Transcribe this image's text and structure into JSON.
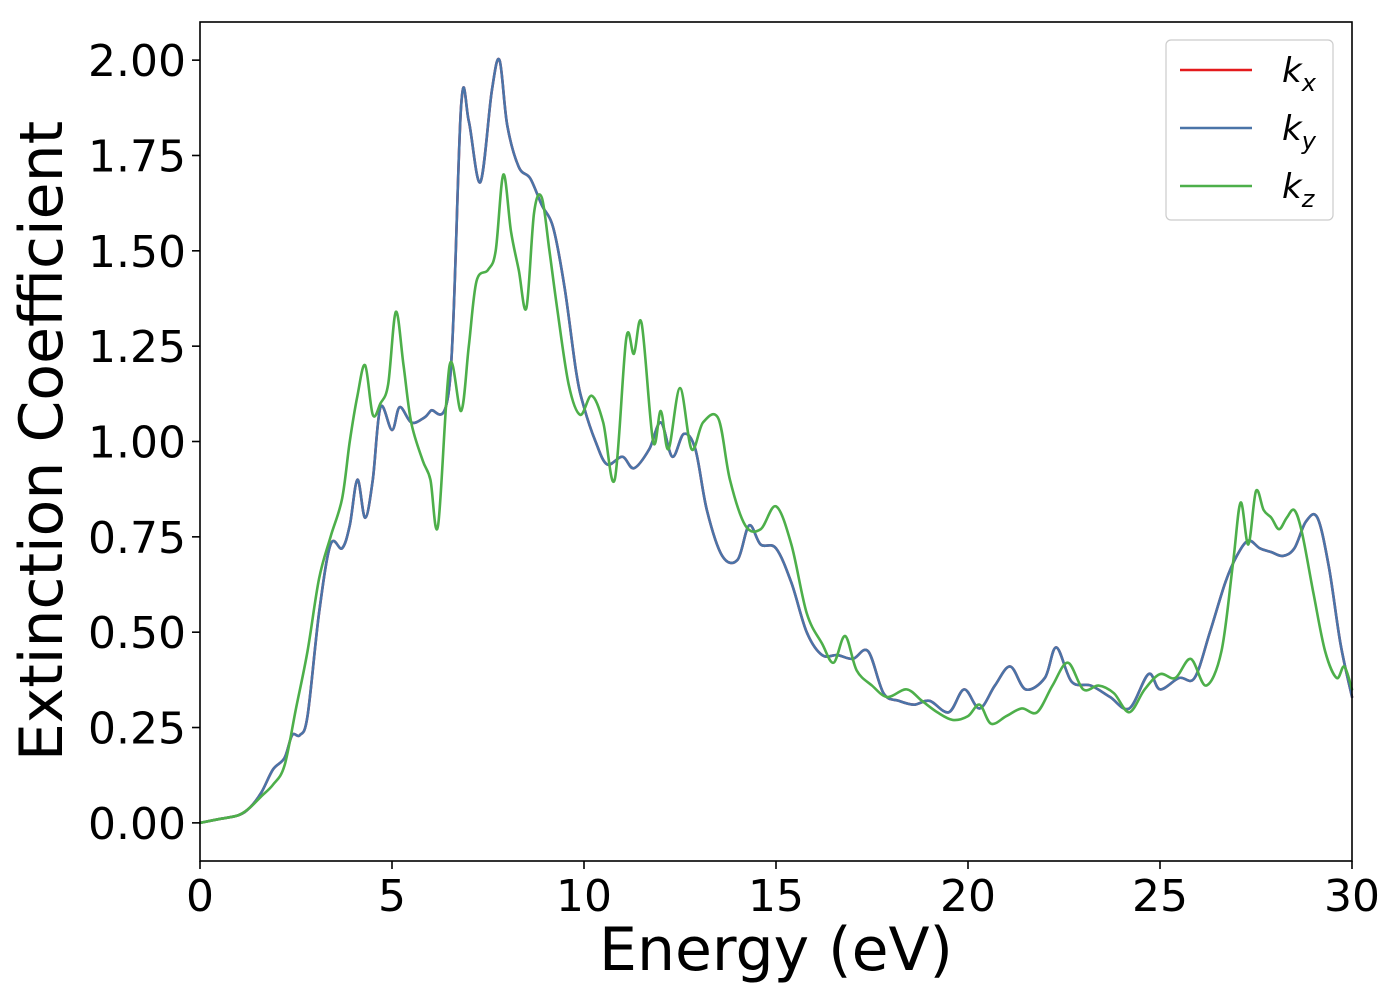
{
  "chart_data": {
    "type": "line",
    "title": "",
    "xlabel": "Energy (eV)",
    "ylabel": "Extinction Coefficient",
    "xlim": [
      0,
      30
    ],
    "ylim": [
      -0.1,
      2.1
    ],
    "xticks": [
      0,
      5,
      10,
      15,
      20,
      25,
      30
    ],
    "xtick_labels": [
      "0",
      "5",
      "10",
      "15",
      "20",
      "25",
      "30"
    ],
    "yticks": [
      0.0,
      0.25,
      0.5,
      0.75,
      1.0,
      1.25,
      1.5,
      1.75,
      2.0
    ],
    "ytick_labels": [
      "0.00",
      "0.25",
      "0.50",
      "0.75",
      "1.00",
      "1.25",
      "1.50",
      "1.75",
      "2.00"
    ],
    "grid": false,
    "legend_position": "top-right",
    "series": [
      {
        "name": "k",
        "subscript": "x",
        "color": "#e41a1c",
        "x": [
          0,
          0.5,
          1.0,
          1.3,
          1.6,
          1.9,
          2.2,
          2.4,
          2.6,
          2.8,
          3.1,
          3.4,
          3.7,
          3.9,
          4.1,
          4.3,
          4.5,
          4.7,
          5.0,
          5.2,
          5.5,
          5.8,
          6.0,
          6.5,
          6.8,
          7.0,
          7.3,
          7.6,
          7.8,
          8.0,
          8.3,
          8.6,
          8.9,
          9.2,
          9.5,
          9.8,
          10.0,
          10.3,
          10.6,
          11.0,
          11.3,
          11.7,
          12.0,
          12.3,
          12.6,
          12.9,
          13.2,
          13.6,
          14.0,
          14.3,
          14.6,
          15.0,
          15.4,
          15.8,
          16.2,
          16.6,
          17.0,
          17.4,
          17.8,
          18.2,
          18.6,
          19.0,
          19.5,
          19.9,
          20.3,
          20.7,
          21.1,
          21.5,
          22.0,
          22.3,
          22.7,
          23.2,
          23.7,
          24.2,
          24.7,
          25.0,
          25.5,
          25.9,
          26.3,
          26.7,
          27.0,
          27.3,
          27.6,
          27.9,
          28.2,
          28.5,
          28.8,
          29.1,
          29.4,
          29.7,
          30.0
        ],
        "y": [
          0.0,
          0.01,
          0.02,
          0.04,
          0.08,
          0.14,
          0.17,
          0.23,
          0.23,
          0.28,
          0.55,
          0.73,
          0.72,
          0.78,
          0.9,
          0.8,
          0.9,
          1.09,
          1.03,
          1.09,
          1.05,
          1.06,
          1.08,
          1.15,
          1.88,
          1.84,
          1.68,
          1.92,
          2.0,
          1.83,
          1.72,
          1.69,
          1.62,
          1.56,
          1.4,
          1.18,
          1.09,
          1.0,
          0.94,
          0.96,
          0.93,
          0.98,
          1.05,
          0.96,
          1.02,
          0.98,
          0.82,
          0.7,
          0.69,
          0.78,
          0.73,
          0.72,
          0.63,
          0.5,
          0.44,
          0.44,
          0.43,
          0.45,
          0.34,
          0.32,
          0.31,
          0.32,
          0.29,
          0.35,
          0.3,
          0.36,
          0.41,
          0.35,
          0.38,
          0.46,
          0.37,
          0.36,
          0.33,
          0.3,
          0.39,
          0.35,
          0.38,
          0.38,
          0.5,
          0.63,
          0.7,
          0.74,
          0.72,
          0.71,
          0.7,
          0.72,
          0.79,
          0.8,
          0.67,
          0.47,
          0.33
        ]
      },
      {
        "name": "k",
        "subscript": "y",
        "color": "#4a74a8",
        "x": [
          0,
          0.5,
          1.0,
          1.3,
          1.6,
          1.9,
          2.2,
          2.4,
          2.6,
          2.8,
          3.1,
          3.4,
          3.7,
          3.9,
          4.1,
          4.3,
          4.5,
          4.7,
          5.0,
          5.2,
          5.5,
          5.8,
          6.0,
          6.5,
          6.8,
          7.0,
          7.3,
          7.6,
          7.8,
          8.0,
          8.3,
          8.6,
          8.9,
          9.2,
          9.5,
          9.8,
          10.0,
          10.3,
          10.6,
          11.0,
          11.3,
          11.7,
          12.0,
          12.3,
          12.6,
          12.9,
          13.2,
          13.6,
          14.0,
          14.3,
          14.6,
          15.0,
          15.4,
          15.8,
          16.2,
          16.6,
          17.0,
          17.4,
          17.8,
          18.2,
          18.6,
          19.0,
          19.5,
          19.9,
          20.3,
          20.7,
          21.1,
          21.5,
          22.0,
          22.3,
          22.7,
          23.2,
          23.7,
          24.2,
          24.7,
          25.0,
          25.5,
          25.9,
          26.3,
          26.7,
          27.0,
          27.3,
          27.6,
          27.9,
          28.2,
          28.5,
          28.8,
          29.1,
          29.4,
          29.7,
          30.0
        ],
        "y": [
          0.0,
          0.01,
          0.02,
          0.04,
          0.08,
          0.14,
          0.17,
          0.23,
          0.23,
          0.28,
          0.55,
          0.73,
          0.72,
          0.78,
          0.9,
          0.8,
          0.9,
          1.09,
          1.03,
          1.09,
          1.05,
          1.06,
          1.08,
          1.15,
          1.88,
          1.84,
          1.68,
          1.92,
          2.0,
          1.83,
          1.72,
          1.69,
          1.62,
          1.56,
          1.4,
          1.18,
          1.09,
          1.0,
          0.94,
          0.96,
          0.93,
          0.98,
          1.05,
          0.96,
          1.02,
          0.98,
          0.82,
          0.7,
          0.69,
          0.78,
          0.73,
          0.72,
          0.63,
          0.5,
          0.44,
          0.44,
          0.43,
          0.45,
          0.34,
          0.32,
          0.31,
          0.32,
          0.29,
          0.35,
          0.3,
          0.36,
          0.41,
          0.35,
          0.38,
          0.46,
          0.37,
          0.36,
          0.33,
          0.3,
          0.39,
          0.35,
          0.38,
          0.38,
          0.5,
          0.63,
          0.7,
          0.74,
          0.72,
          0.71,
          0.7,
          0.72,
          0.79,
          0.8,
          0.67,
          0.47,
          0.33
        ]
      },
      {
        "name": "k",
        "subscript": "z",
        "color": "#4daf4a",
        "x": [
          0,
          0.5,
          1.0,
          1.3,
          1.6,
          1.9,
          2.2,
          2.5,
          2.8,
          3.1,
          3.4,
          3.7,
          3.9,
          4.1,
          4.3,
          4.5,
          4.7,
          4.9,
          5.1,
          5.3,
          5.5,
          5.8,
          6.0,
          6.2,
          6.5,
          6.8,
          7.0,
          7.2,
          7.5,
          7.7,
          7.9,
          8.1,
          8.3,
          8.5,
          8.7,
          8.9,
          9.1,
          9.3,
          9.6,
          9.9,
          10.2,
          10.5,
          10.8,
          11.1,
          11.3,
          11.5,
          11.8,
          12.0,
          12.2,
          12.5,
          12.8,
          13.1,
          13.5,
          13.8,
          14.2,
          14.6,
          15.0,
          15.4,
          15.8,
          16.2,
          16.5,
          16.8,
          17.1,
          17.5,
          17.9,
          18.4,
          18.8,
          19.2,
          19.6,
          20.0,
          20.3,
          20.6,
          21.0,
          21.4,
          21.8,
          22.2,
          22.6,
          23.0,
          23.4,
          23.8,
          24.2,
          24.6,
          25.0,
          25.4,
          25.8,
          26.2,
          26.6,
          26.9,
          27.1,
          27.3,
          27.5,
          27.7,
          27.9,
          28.1,
          28.3,
          28.5,
          28.7,
          29.0,
          29.3,
          29.6,
          29.8,
          30.0
        ],
        "y": [
          0.0,
          0.01,
          0.02,
          0.04,
          0.07,
          0.1,
          0.15,
          0.3,
          0.45,
          0.64,
          0.75,
          0.85,
          1.0,
          1.12,
          1.2,
          1.07,
          1.1,
          1.15,
          1.34,
          1.2,
          1.05,
          0.95,
          0.9,
          0.78,
          1.2,
          1.08,
          1.25,
          1.42,
          1.45,
          1.5,
          1.7,
          1.55,
          1.45,
          1.35,
          1.6,
          1.64,
          1.5,
          1.35,
          1.15,
          1.07,
          1.12,
          1.05,
          0.9,
          1.27,
          1.23,
          1.31,
          1.0,
          1.08,
          0.98,
          1.14,
          0.98,
          1.05,
          1.06,
          0.9,
          0.78,
          0.77,
          0.83,
          0.73,
          0.55,
          0.47,
          0.42,
          0.49,
          0.4,
          0.36,
          0.33,
          0.35,
          0.32,
          0.29,
          0.27,
          0.28,
          0.31,
          0.26,
          0.28,
          0.3,
          0.29,
          0.36,
          0.42,
          0.35,
          0.36,
          0.34,
          0.29,
          0.35,
          0.39,
          0.38,
          0.43,
          0.36,
          0.45,
          0.68,
          0.84,
          0.73,
          0.87,
          0.82,
          0.8,
          0.77,
          0.8,
          0.82,
          0.76,
          0.6,
          0.45,
          0.38,
          0.41,
          0.35
        ]
      }
    ]
  }
}
